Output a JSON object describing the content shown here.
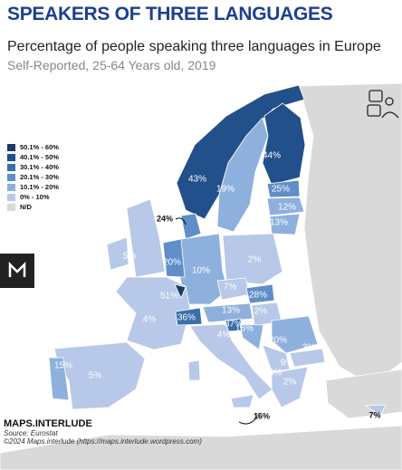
{
  "header": {
    "title": "SPEAKERS OF THREE LANGUAGES",
    "subtitle": "Percentage of people speaking three languages in Europe",
    "note": "Self-Reported, 25-64 Years old, 2019"
  },
  "legend": [
    {
      "label": "50.1% - 60%",
      "color": "#1b3a63"
    },
    {
      "label": "40.1% - 50%",
      "color": "#22508a"
    },
    {
      "label": "30.1% - 40%",
      "color": "#3b6eaa"
    },
    {
      "label": "20.1% - 30%",
      "color": "#5f8ec8"
    },
    {
      "label": "10.1% - 20%",
      "color": "#8eb0dc"
    },
    {
      "label": "0% - 10%",
      "color": "#b7c8e8"
    },
    {
      "label": "N/D",
      "color": "#d9d9d9"
    }
  ],
  "map_labels": [
    "44%",
    "43%",
    "19%",
    "25%",
    "12%",
    "13%",
    "24%",
    "5%",
    "20%",
    "10%",
    "2%",
    "51%",
    "7%",
    "28%",
    "4%",
    "36%",
    "13%",
    "2%",
    "37%",
    "16%",
    "4%",
    "20%",
    "3%",
    "9%",
    "15%",
    "5%",
    "3%",
    "2%",
    "16%",
    "7%"
  ],
  "footer": {
    "brand": "MAPS.INTERLUDE",
    "source": "Source: Eurostat",
    "credit": "©2024 Maps.interlude (https://maps.interlude.wordpress.com)"
  }
}
